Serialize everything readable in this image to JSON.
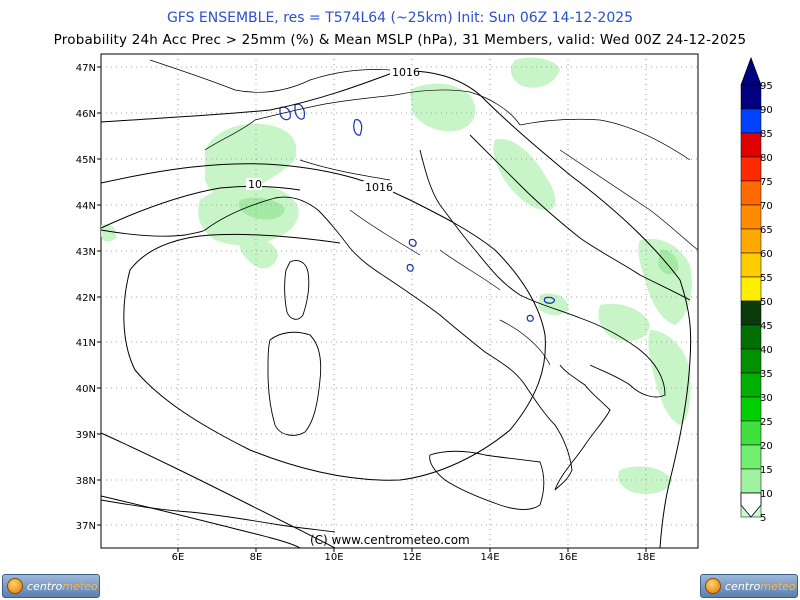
{
  "header": {
    "title": "GFS ENSEMBLE, res = T574L64 (~25km)    Init: Sun 06Z 14-12-2025",
    "subtitle": "Probability 24h Acc Prec > 25mm (%) & Mean MSLP (hPa), 31 Members, valid: Wed 00Z 24-12-2025"
  },
  "map": {
    "lat_labels": [
      "47N",
      "46N",
      "45N",
      "44N",
      "43N",
      "42N",
      "41N",
      "40N",
      "39N",
      "38N",
      "37N"
    ],
    "lon_labels": [
      "6E",
      "8E",
      "10E",
      "12E",
      "14E",
      "16E",
      "18E"
    ],
    "isobar_labels": [
      "1016",
      "1016",
      "10"
    ],
    "copyright": "(C) www.centrometeo.com",
    "colors": {
      "precip_light": "#c8f5c8",
      "precip_medium": "#a4eaa4",
      "isobar": "#000000",
      "coast": "#000000",
      "lakes": "#1a2fb0"
    }
  },
  "legend": {
    "levels": [
      "95",
      "90",
      "85",
      "80",
      "75",
      "70",
      "65",
      "60",
      "55",
      "50",
      "45",
      "40",
      "35",
      "30",
      "25",
      "20",
      "15",
      "10",
      "5"
    ],
    "colors": [
      "#000080",
      "#0040ff",
      "#e00000",
      "#ff2a00",
      "#ff6a00",
      "#ff8c00",
      "#ffaa00",
      "#ffcc00",
      "#ffee00",
      "#0a3a0a",
      "#007000",
      "#009000",
      "#00b000",
      "#00d000",
      "#40e040",
      "#70ee70",
      "#a0f2a0",
      "#c8f8c8",
      "#ffffff"
    ]
  },
  "logos": {
    "text_left": "centro",
    "text_right": "meteo"
  }
}
